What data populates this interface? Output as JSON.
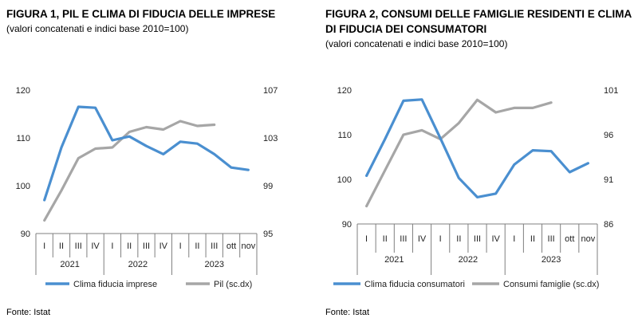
{
  "colors": {
    "blue": "#4a8fd0",
    "gray": "#a6a6a6",
    "axis": "#7f7f7f"
  },
  "chart_data": [
    {
      "type": "line",
      "title": "FIGURA 1, PIL E CLIMA DI FIDUCIA DELLE IMPRESE",
      "subtitle": "(valori concatenati e indici base 2010=100)",
      "source": "Fonte: Istat",
      "categories": [
        "I",
        "II",
        "III",
        "IV",
        "I",
        "II",
        "III",
        "IV",
        "I",
        "II",
        "III",
        "ott",
        "nov"
      ],
      "years": [
        {
          "label": "2021",
          "span": 4
        },
        {
          "label": "2022",
          "span": 4
        },
        {
          "label": "2023",
          "span": 5
        }
      ],
      "left_axis": {
        "min": 90,
        "max": 120,
        "ticks": [
          90,
          100,
          110,
          120
        ]
      },
      "right_axis": {
        "min": 95,
        "max": 107,
        "ticks": [
          95,
          99,
          103,
          107
        ]
      },
      "series": [
        {
          "name": "Clima fiducia imprese",
          "axis": "left",
          "color": "#4a8fd0",
          "values": [
            97.0,
            108.0,
            116.5,
            116.3,
            109.5,
            110.3,
            108.3,
            106.6,
            109.2,
            108.8,
            106.6,
            103.8,
            103.3
          ]
        },
        {
          "name": "Pil (sc.dx)",
          "axis": "right",
          "color": "#a6a6a6",
          "values": [
            96.1,
            98.6,
            101.3,
            102.1,
            102.2,
            103.5,
            103.9,
            103.7,
            104.4,
            104.0,
            104.1,
            null,
            null
          ]
        }
      ],
      "legend_position": "bottom"
    },
    {
      "type": "line",
      "title": "FIGURA 2, CONSUMI DELLE FAMIGLIE RESIDENTI E CLIMA DI FIDUCIA DEI CONSUMATORI",
      "subtitle": "(valori concatenati e indici base 2010=100)",
      "source": "Fonte: Istat",
      "categories": [
        "I",
        "II",
        "III",
        "IV",
        "I",
        "II",
        "III",
        "IV",
        "I",
        "II",
        "III",
        "ott",
        "nov"
      ],
      "years": [
        {
          "label": "2021",
          "span": 4
        },
        {
          "label": "2022",
          "span": 4
        },
        {
          "label": "2023",
          "span": 5
        }
      ],
      "left_axis": {
        "min": 90,
        "max": 120,
        "ticks": [
          90,
          100,
          110,
          120
        ]
      },
      "right_axis": {
        "min": 86,
        "max": 101,
        "ticks": [
          86,
          91,
          96,
          101
        ]
      },
      "series": [
        {
          "name": "Clima fiducia consumatori",
          "axis": "left",
          "color": "#4a8fd0",
          "values": [
            100.8,
            109.0,
            117.6,
            117.9,
            109.2,
            100.3,
            96.0,
            96.8,
            103.3,
            106.5,
            106.3,
            101.6,
            103.6
          ]
        },
        {
          "name": "Consumi famiglie (sc.dx)",
          "axis": "right",
          "color": "#a6a6a6",
          "values": [
            88.0,
            92.0,
            96.0,
            96.5,
            95.5,
            97.3,
            99.9,
            98.5,
            99.0,
            99.0,
            99.6,
            null,
            null
          ]
        }
      ],
      "legend_position": "bottom"
    }
  ]
}
